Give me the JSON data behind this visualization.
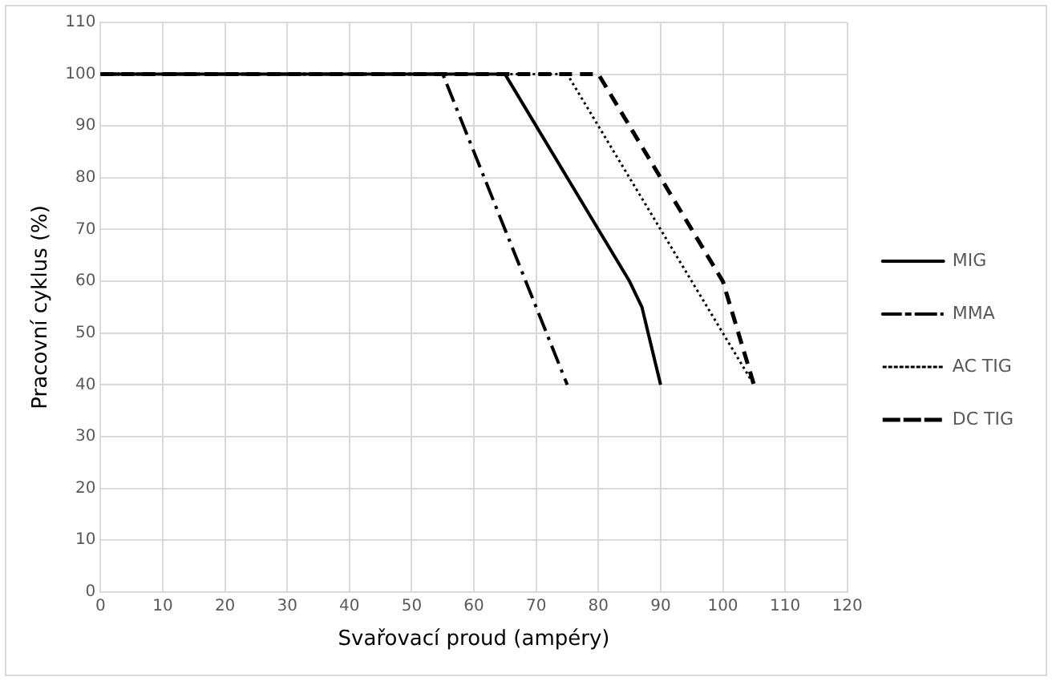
{
  "chart_data": {
    "type": "line",
    "xlabel": "Svařovací proud (ampéry)",
    "ylabel": "Pracovní cyklus (%)",
    "xlim": [
      0,
      120
    ],
    "xticks": [
      0,
      10,
      20,
      30,
      40,
      50,
      60,
      70,
      80,
      90,
      100,
      110,
      120
    ],
    "ylim": [
      0,
      110
    ],
    "yticks": [
      0,
      10,
      20,
      30,
      40,
      50,
      60,
      70,
      80,
      90,
      100,
      110
    ],
    "grid": true,
    "legend": "right",
    "marker": "none",
    "series": [
      {
        "name": "MIG",
        "color": "#000000",
        "line_style": "solid",
        "x": [
          0,
          65,
          80,
          85,
          87,
          88,
          90
        ],
        "values": [
          100,
          100,
          70,
          60,
          55,
          50,
          40
        ]
      },
      {
        "name": "MMA",
        "color": "#000000",
        "line_style": "dashdot",
        "x": [
          0,
          55,
          75
        ],
        "values": [
          100,
          100,
          40
        ]
      },
      {
        "name": "AC TIG",
        "color": "#000000",
        "line_style": "dotted",
        "x": [
          0,
          75,
          105
        ],
        "values": [
          100,
          100,
          40
        ]
      },
      {
        "name": "DC TIG",
        "color": "#000000",
        "line_style": "dashed",
        "x": [
          0,
          80,
          100,
          105
        ],
        "values": [
          100,
          100,
          60,
          40
        ]
      }
    ]
  }
}
